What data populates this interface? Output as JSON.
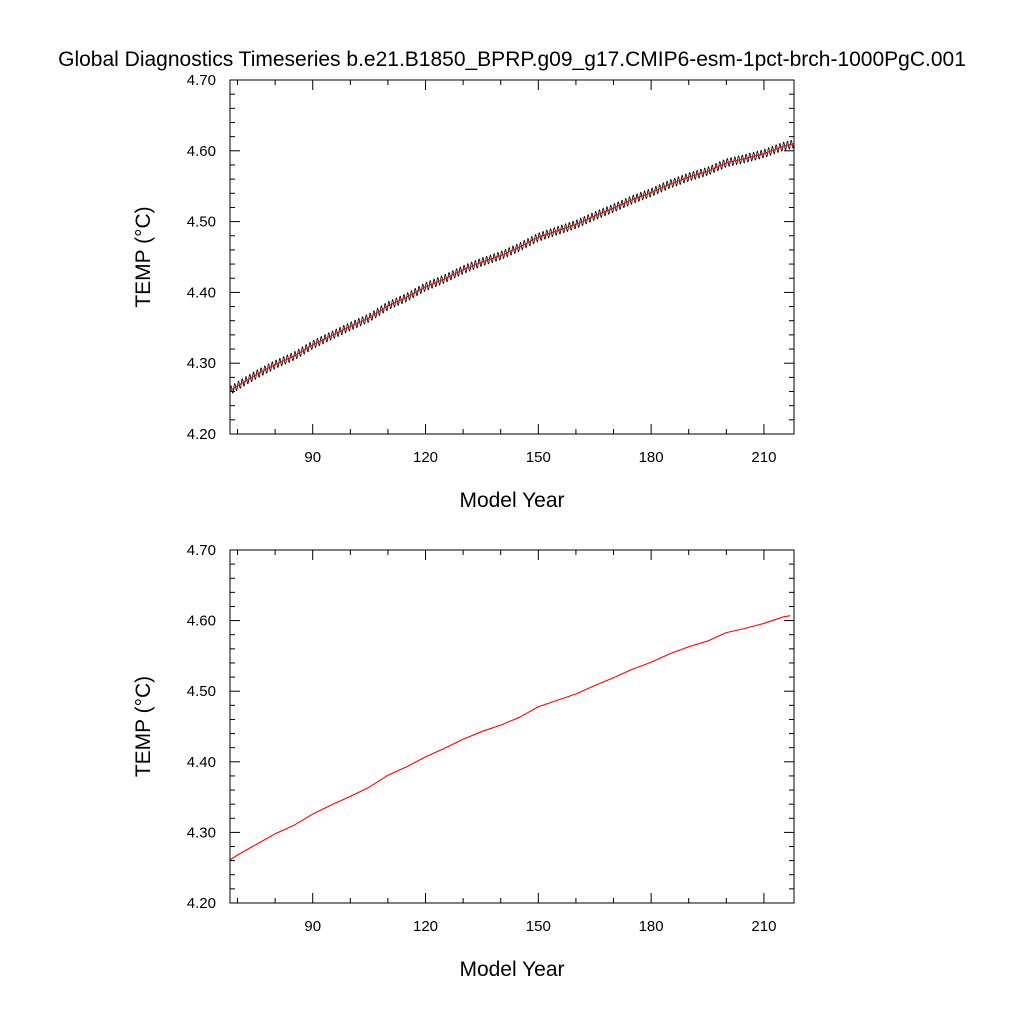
{
  "title": "Global Diagnostics Timeseries b.e21.B1850_BPRP.g09_g17.CMIP6-esm-1pct-brch-1000PgC.001",
  "colors": {
    "monthly_series": "#000000",
    "annual_series": "#ff0000"
  },
  "chart_data": [
    {
      "type": "line",
      "xlabel": "Model Year",
      "ylabel": "TEMP (°C)",
      "xlim": [
        68,
        218
      ],
      "ylim": [
        4.2,
        4.7
      ],
      "xticks": [
        90,
        120,
        150,
        180,
        210
      ],
      "xtick_labels": [
        "90",
        "120",
        "150",
        "180",
        "210"
      ],
      "yticks": [
        4.2,
        4.3,
        4.4,
        4.5,
        4.6,
        4.7
      ],
      "ytick_labels": [
        "4.20",
        "4.30",
        "4.40",
        "4.50",
        "4.60",
        "4.70"
      ],
      "grid": false,
      "series": [
        {
          "style": "monthly",
          "color": "#000000",
          "seasonal_amplitude": 0.006,
          "x": [
            68,
            70,
            75,
            80,
            85,
            90,
            95,
            100,
            105,
            110,
            115,
            120,
            125,
            130,
            135,
            140,
            145,
            150,
            155,
            160,
            165,
            170,
            175,
            180,
            185,
            190,
            195,
            200,
            205,
            210,
            215,
            218
          ],
          "y": [
            4.261,
            4.268,
            4.284,
            4.298,
            4.31,
            4.326,
            4.339,
            4.352,
            4.364,
            4.381,
            4.393,
            4.408,
            4.419,
            4.432,
            4.443,
            4.452,
            4.464,
            4.478,
            4.487,
            4.496,
            4.508,
            4.519,
            4.531,
            4.541,
            4.553,
            4.563,
            4.571,
            4.583,
            4.589,
            4.596,
            4.606,
            4.61
          ]
        },
        {
          "style": "annual",
          "color": "#ff0000",
          "x": [
            68,
            70,
            75,
            80,
            85,
            90,
            95,
            100,
            105,
            110,
            115,
            120,
            125,
            130,
            135,
            140,
            145,
            150,
            155,
            160,
            165,
            170,
            175,
            180,
            185,
            190,
            195,
            200,
            205,
            210,
            215,
            218
          ],
          "y": [
            4.261,
            4.268,
            4.284,
            4.298,
            4.31,
            4.326,
            4.339,
            4.352,
            4.364,
            4.381,
            4.393,
            4.408,
            4.419,
            4.432,
            4.443,
            4.452,
            4.464,
            4.478,
            4.487,
            4.496,
            4.508,
            4.519,
            4.531,
            4.541,
            4.553,
            4.563,
            4.571,
            4.583,
            4.589,
            4.596,
            4.606,
            4.61
          ]
        }
      ]
    },
    {
      "type": "line",
      "xlabel": "Model Year",
      "ylabel": "TEMP (°C)",
      "xlim": [
        68,
        218
      ],
      "ylim": [
        4.2,
        4.7
      ],
      "xticks": [
        90,
        120,
        150,
        180,
        210
      ],
      "xtick_labels": [
        "90",
        "120",
        "150",
        "180",
        "210"
      ],
      "yticks": [
        4.2,
        4.3,
        4.4,
        4.5,
        4.6,
        4.7
      ],
      "ytick_labels": [
        "4.20",
        "4.30",
        "4.40",
        "4.50",
        "4.60",
        "4.70"
      ],
      "grid": false,
      "series": [
        {
          "style": "annual",
          "color": "#ff0000",
          "x": [
            68,
            70,
            75,
            80,
            85,
            90,
            95,
            100,
            105,
            110,
            115,
            120,
            125,
            130,
            135,
            140,
            145,
            150,
            155,
            160,
            165,
            170,
            175,
            180,
            185,
            190,
            195,
            200,
            205,
            210,
            215,
            217
          ],
          "y": [
            4.261,
            4.268,
            4.283,
            4.298,
            4.31,
            4.326,
            4.339,
            4.351,
            4.364,
            4.381,
            4.393,
            4.407,
            4.419,
            4.432,
            4.443,
            4.452,
            4.463,
            4.478,
            4.487,
            4.496,
            4.508,
            4.519,
            4.531,
            4.541,
            4.553,
            4.563,
            4.571,
            4.583,
            4.589,
            4.596,
            4.605,
            4.607
          ]
        }
      ]
    }
  ]
}
